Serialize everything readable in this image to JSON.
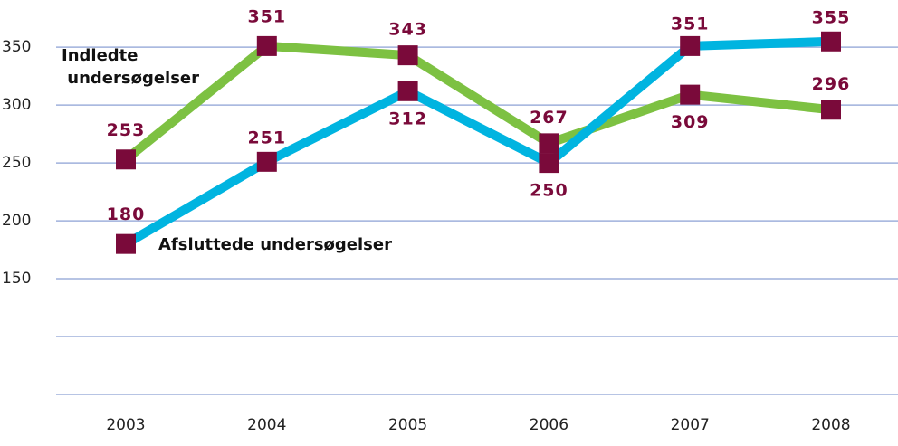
{
  "chart_data": {
    "type": "line",
    "x": [
      "2003",
      "2004",
      "2005",
      "2006",
      "2007",
      "2008"
    ],
    "series": [
      {
        "name": "Indledte undersøgelser",
        "color": "#7dc142",
        "values": [
          253,
          351,
          343,
          267,
          309,
          296
        ]
      },
      {
        "name": "Afsluttede undersøgelser",
        "color": "#00b4e0",
        "values": [
          180,
          251,
          312,
          250,
          351,
          355
        ]
      }
    ],
    "marker_color": "#7a0a3a",
    "ylim": [
      50,
      390
    ],
    "yticks": [
      150,
      200,
      250,
      300,
      350
    ],
    "ygrid": [
      50,
      100,
      150,
      200,
      250,
      300,
      350
    ],
    "grid": true
  }
}
